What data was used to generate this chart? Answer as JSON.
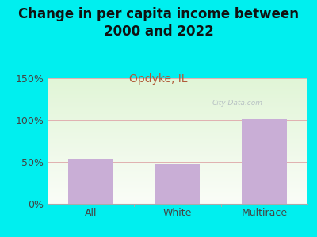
{
  "title": "Change in per capita income between\n2000 and 2022",
  "subtitle": "Opdyke, IL",
  "categories": [
    "All",
    "White",
    "Multirace"
  ],
  "values": [
    54,
    48,
    101
  ],
  "bar_color": "#c9aed6",
  "title_fontsize": 12,
  "subtitle_fontsize": 10,
  "subtitle_color": "#b05a3a",
  "tick_label_fontsize": 9,
  "axis_label_color": "#444444",
  "ylim": [
    0,
    150
  ],
  "yticks": [
    0,
    50,
    100,
    150
  ],
  "ytick_labels": [
    "0%",
    "50%",
    "100%",
    "150%"
  ],
  "background_outer": "#00efef",
  "plot_bg_green": [
    0.88,
    0.96,
    0.84
  ],
  "plot_bg_white": [
    0.98,
    0.99,
    0.97
  ],
  "watermark_text": "City-Data.com",
  "grid_color": "#e0b0b0",
  "title_color": "#111111",
  "spine_color": "#aaaaaa"
}
